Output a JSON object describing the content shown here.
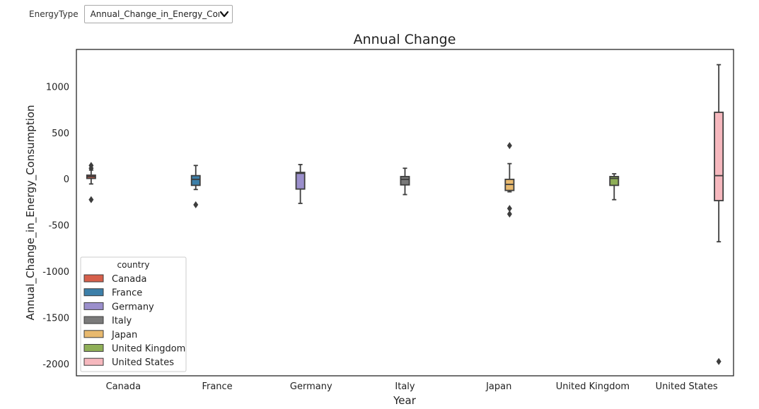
{
  "controls": {
    "label": "EnergyType",
    "selected_value": "Annual_Change_in_Energy_Consumption"
  },
  "chart_data": {
    "type": "box",
    "title": "Annual Change",
    "xlabel": "Year",
    "ylabel": "Annual_Change_in_Energy_Consumption",
    "ylim": [
      -2130,
      1400
    ],
    "yticks": [
      -2000,
      -1500,
      -1000,
      -500,
      0,
      500,
      1000
    ],
    "categories": [
      "Canada",
      "France",
      "Germany",
      "Italy",
      "Japan",
      "United Kingdom",
      "United States"
    ],
    "legend": {
      "title": "country",
      "position": "lower-left"
    },
    "series": [
      {
        "name": "Canada",
        "color": "#d65f4b",
        "q1": 5,
        "median": 25,
        "q3": 40,
        "whisker_low": -55,
        "whisker_high": 95,
        "outliers": [
          145,
          115,
          -225
        ]
      },
      {
        "name": "France",
        "color": "#3c7fa9",
        "q1": -70,
        "median": -5,
        "q3": 35,
        "whisker_low": -115,
        "whisker_high": 145,
        "outliers": [
          -280
        ]
      },
      {
        "name": "Germany",
        "color": "#9b8fcc",
        "q1": -110,
        "median": 60,
        "q3": 70,
        "whisker_low": -265,
        "whisker_high": 155,
        "outliers": []
      },
      {
        "name": "Italy",
        "color": "#7a7a7a",
        "q1": -65,
        "median": -5,
        "q3": 25,
        "whisker_low": -170,
        "whisker_high": 115,
        "outliers": []
      },
      {
        "name": "Japan",
        "color": "#e8b96e",
        "q1": -125,
        "median": -60,
        "q3": -5,
        "whisker_low": -140,
        "whisker_high": 165,
        "outliers": [
          360,
          -320,
          -380
        ]
      },
      {
        "name": "United Kingdom",
        "color": "#8faf57",
        "q1": -70,
        "median": 5,
        "q3": 25,
        "whisker_low": -225,
        "whisker_high": 55,
        "outliers": []
      },
      {
        "name": "United States",
        "color": "#f6b8be",
        "q1": -235,
        "median": 35,
        "q3": 720,
        "whisker_low": -680,
        "whisker_high": 1235,
        "outliers": [
          -1975
        ]
      }
    ]
  }
}
